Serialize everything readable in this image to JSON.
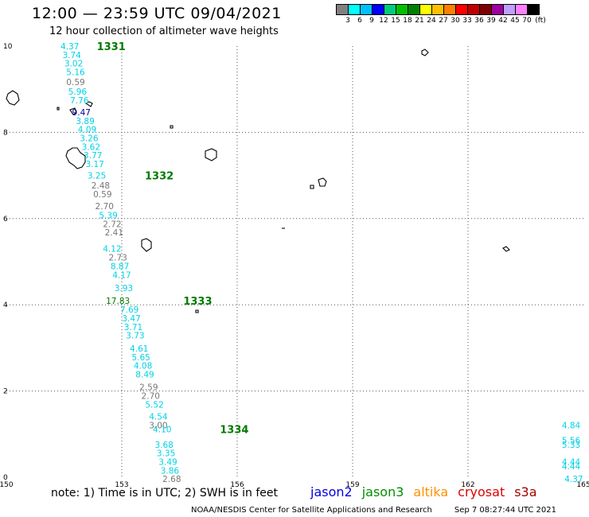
{
  "header": {
    "title": "12:00 — 23:59 UTC 09/04/2021",
    "subtitle": "12 hour collection of altimeter wave heights"
  },
  "legend": {
    "boxes": [
      "#808080",
      "#00ffff",
      "#00bfff",
      "#0000ff",
      "#00cc80",
      "#00c000",
      "#008000",
      "#ffff00",
      "#ffc000",
      "#ff8000",
      "#ff0000",
      "#c00000",
      "#800000",
      "#a000a0",
      "#c0a0ff",
      "#ff80ff",
      "#000000"
    ],
    "labels": [
      "3",
      "6",
      "9",
      "12",
      "15",
      "18",
      "21",
      "24",
      "27",
      "30",
      "33",
      "36",
      "39",
      "42",
      "45",
      "70",
      "(ft)"
    ]
  },
  "axes": {
    "x_ticks": [
      "150",
      "153",
      "156",
      "159",
      "162",
      "165"
    ],
    "y_ticks": [
      "10",
      "8",
      "6",
      "4",
      "2",
      "0"
    ]
  },
  "colors": {
    "cyan": "#00d2e6",
    "gray": "#777777",
    "navy": "#000090",
    "green": "#007a00"
  },
  "passes": [
    {
      "label": "1331",
      "lon": 152.35,
      "lat": 10.0
    },
    {
      "label": "1332",
      "lon": 153.6,
      "lat": 7.0
    },
    {
      "label": "1333",
      "lon": 154.6,
      "lat": 4.1
    },
    {
      "label": "1334",
      "lon": 155.55,
      "lat": 1.12
    }
  ],
  "measurements": [
    {
      "v": "4.37",
      "lon": 151.65,
      "lat": 10.0,
      "c": "cyan"
    },
    {
      "v": "3.74",
      "lon": 151.7,
      "lat": 9.8,
      "c": "cyan"
    },
    {
      "v": "3.02",
      "lon": 151.75,
      "lat": 9.6,
      "c": "cyan"
    },
    {
      "v": "5.16",
      "lon": 151.8,
      "lat": 9.4,
      "c": "cyan"
    },
    {
      "v": "0.59",
      "lon": 151.8,
      "lat": 9.17,
      "c": "gray"
    },
    {
      "v": "5.96",
      "lon": 151.85,
      "lat": 8.95,
      "c": "cyan"
    },
    {
      "v": "7.76",
      "lon": 151.9,
      "lat": 8.75,
      "c": "cyan"
    },
    {
      "v": "9.47",
      "lon": 151.95,
      "lat": 8.47,
      "c": "navy"
    },
    {
      "v": "3.89",
      "lon": 152.05,
      "lat": 8.27,
      "c": "cyan"
    },
    {
      "v": "4.09",
      "lon": 152.1,
      "lat": 8.07,
      "c": "cyan"
    },
    {
      "v": "3.26",
      "lon": 152.15,
      "lat": 7.87,
      "c": "cyan"
    },
    {
      "v": "3.62",
      "lon": 152.2,
      "lat": 7.67,
      "c": "cyan"
    },
    {
      "v": "3.77",
      "lon": 152.25,
      "lat": 7.47,
      "c": "cyan"
    },
    {
      "v": "3.17",
      "lon": 152.3,
      "lat": 7.27,
      "c": "cyan"
    },
    {
      "v": "3.25",
      "lon": 152.35,
      "lat": 7.0,
      "c": "cyan"
    },
    {
      "v": "2.48",
      "lon": 152.45,
      "lat": 6.77,
      "c": "gray"
    },
    {
      "v": "0.59",
      "lon": 152.5,
      "lat": 6.57,
      "c": "gray"
    },
    {
      "v": "2.70",
      "lon": 152.55,
      "lat": 6.29,
      "c": "gray"
    },
    {
      "v": "5.39",
      "lon": 152.65,
      "lat": 6.08,
      "c": "cyan"
    },
    {
      "v": "2.72",
      "lon": 152.75,
      "lat": 5.88,
      "c": "gray"
    },
    {
      "v": "2.41",
      "lon": 152.8,
      "lat": 5.68,
      "c": "gray"
    },
    {
      "v": "4.12",
      "lon": 152.75,
      "lat": 5.3,
      "c": "cyan"
    },
    {
      "v": "2.73",
      "lon": 152.9,
      "lat": 5.1,
      "c": "gray"
    },
    {
      "v": "8.87",
      "lon": 152.95,
      "lat": 4.9,
      "c": "cyan"
    },
    {
      "v": "4.17",
      "lon": 153.0,
      "lat": 4.7,
      "c": "cyan"
    },
    {
      "v": "3.93",
      "lon": 153.05,
      "lat": 4.39,
      "c": "cyan"
    },
    {
      "v": "17.83",
      "lon": 152.9,
      "lat": 4.1,
      "c": "green"
    },
    {
      "v": "7.69",
      "lon": 153.2,
      "lat": 3.89,
      "c": "cyan"
    },
    {
      "v": "3.47",
      "lon": 153.25,
      "lat": 3.69,
      "c": "cyan"
    },
    {
      "v": "3.71",
      "lon": 153.3,
      "lat": 3.49,
      "c": "cyan"
    },
    {
      "v": "3.73",
      "lon": 153.35,
      "lat": 3.29,
      "c": "cyan"
    },
    {
      "v": "4.61",
      "lon": 153.45,
      "lat": 2.99,
      "c": "cyan"
    },
    {
      "v": "5.65",
      "lon": 153.5,
      "lat": 2.79,
      "c": "cyan"
    },
    {
      "v": "4.08",
      "lon": 153.55,
      "lat": 2.59,
      "c": "cyan"
    },
    {
      "v": "8.49",
      "lon": 153.6,
      "lat": 2.39,
      "c": "cyan"
    },
    {
      "v": "2.59",
      "lon": 153.7,
      "lat": 2.09,
      "c": "gray"
    },
    {
      "v": "2.70",
      "lon": 153.75,
      "lat": 1.89,
      "c": "gray"
    },
    {
      "v": "5.52",
      "lon": 153.85,
      "lat": 1.69,
      "c": "cyan"
    },
    {
      "v": "4.54",
      "lon": 153.95,
      "lat": 1.41,
      "c": "cyan"
    },
    {
      "v": "3.00",
      "lon": 153.95,
      "lat": 1.21,
      "c": "gray"
    },
    {
      "v": "4.10",
      "lon": 154.05,
      "lat": 1.12,
      "c": "cyan"
    },
    {
      "v": "3.68",
      "lon": 154.1,
      "lat": 0.76,
      "c": "cyan"
    },
    {
      "v": "3.35",
      "lon": 154.15,
      "lat": 0.56,
      "c": "cyan"
    },
    {
      "v": "3.49",
      "lon": 154.2,
      "lat": 0.36,
      "c": "cyan"
    },
    {
      "v": "3.86",
      "lon": 154.25,
      "lat": 0.16,
      "c": "cyan"
    },
    {
      "v": "2.68",
      "lon": 154.3,
      "lat": -0.04,
      "c": "gray"
    },
    {
      "v": "4.37",
      "lon": 164.75,
      "lat": -0.04,
      "c": "cyan"
    },
    {
      "v": "4.44",
      "lon": 164.68,
      "lat": 0.26,
      "c": "cyan"
    },
    {
      "v": "4.44",
      "lon": 164.68,
      "lat": 0.36,
      "c": "cyan"
    },
    {
      "v": "5.33",
      "lon": 164.68,
      "lat": 0.76,
      "c": "cyan"
    },
    {
      "v": "5.56",
      "lon": 164.68,
      "lat": 0.86,
      "c": "cyan"
    },
    {
      "v": "4.84",
      "lon": 164.68,
      "lat": 1.21,
      "c": "cyan"
    }
  ],
  "footer": {
    "note": "note: 1) Time is in UTC; 2) SWH is in feet",
    "satellites": [
      {
        "name": "jason2",
        "color": "#0000e0"
      },
      {
        "name": "jason3",
        "color": "#009000"
      },
      {
        "name": "altika",
        "color": "#ff9000"
      },
      {
        "name": "cryosat",
        "color": "#e00000"
      },
      {
        "name": "s3a",
        "color": "#a00000"
      }
    ],
    "credit": "NOAA/NESDIS Center for Satellite Applications and Research",
    "timestamp": "Sep  7 08:27:44 UTC 2021"
  }
}
